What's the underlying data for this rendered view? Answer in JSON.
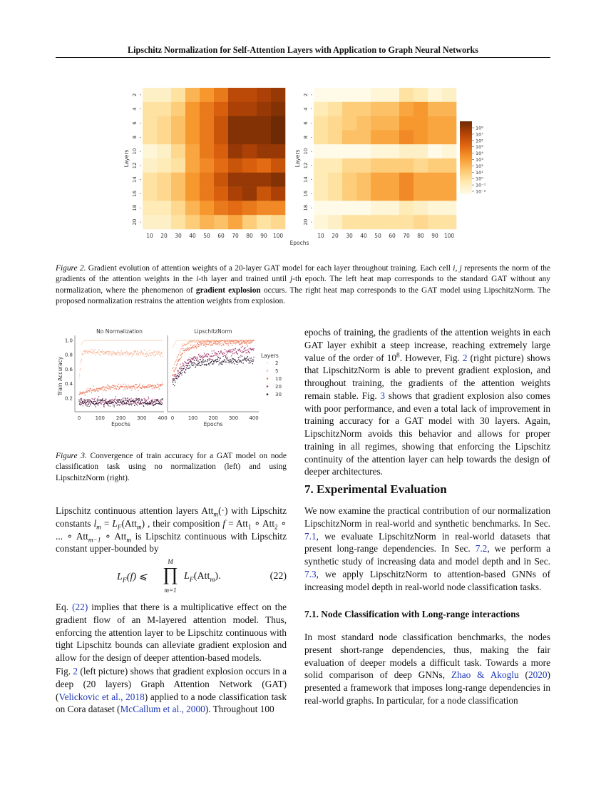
{
  "header": {
    "running_title": "Lipschitz Normalization for Self-Attention Layers with Application to Graph Neural Networks"
  },
  "chart_data": [
    {
      "type": "heatmap",
      "title": "Figure 2 left: standard GAT",
      "xlabel": "Epochs",
      "ylabel": "Layers",
      "x": [
        "10",
        "20",
        "30",
        "40",
        "50",
        "60",
        "70",
        "80",
        "90",
        "100"
      ],
      "y": [
        "2",
        "4",
        "6",
        "8",
        "10",
        "12",
        "14",
        "16",
        "18",
        "20"
      ],
      "value_scale": "log10 of gradient norm",
      "values": [
        [
          -1,
          -1,
          0,
          2,
          3,
          4,
          6,
          6,
          6.5,
          7
        ],
        [
          0,
          0,
          1,
          3,
          4,
          5,
          6.5,
          6.5,
          7,
          7.5
        ],
        [
          0,
          0.5,
          1.5,
          3,
          4,
          5.5,
          7.5,
          7.5,
          7.5,
          8
        ],
        [
          0,
          0.5,
          1.5,
          3,
          4,
          5.5,
          7.5,
          7.5,
          7.5,
          8
        ],
        [
          -1.5,
          -1,
          0.5,
          2.5,
          4,
          5,
          7,
          6.5,
          7,
          7
        ],
        [
          -1,
          -0.5,
          0,
          2.5,
          3.5,
          4.5,
          5.5,
          5,
          4.5,
          5.5
        ],
        [
          0,
          0.5,
          1.5,
          3,
          4,
          5.5,
          7,
          7,
          7,
          7.5
        ],
        [
          0,
          0.5,
          1.5,
          3,
          4,
          5,
          6.5,
          7,
          5.5,
          6.5
        ],
        [
          -0.5,
          -0.5,
          0.5,
          2,
          3,
          4,
          4.5,
          4,
          3.5,
          3.5
        ],
        [
          -1,
          -1,
          0,
          1,
          2,
          1.5,
          2.5,
          1,
          0,
          0.5
        ]
      ]
    },
    {
      "type": "heatmap",
      "title": "Figure 2 right: GAT with LipschitzNorm",
      "xlabel": "Epochs",
      "ylabel": "Layers",
      "x": [
        "10",
        "20",
        "30",
        "40",
        "50",
        "60",
        "70",
        "80",
        "90",
        "100"
      ],
      "y": [
        "2",
        "4",
        "6",
        "8",
        "10",
        "12",
        "14",
        "16",
        "18",
        "20"
      ],
      "value_scale": "log10 of gradient norm",
      "values": [
        [
          -2,
          -2,
          -2,
          -2,
          -1.5,
          -1.5,
          0,
          -0.5,
          -1.5,
          -1
        ],
        [
          -0.5,
          0,
          1,
          1,
          1.5,
          1.5,
          2.5,
          3,
          2,
          2
        ],
        [
          0,
          0.5,
          1,
          1.5,
          2,
          2,
          3,
          3,
          2.5,
          2.5
        ],
        [
          0,
          0.5,
          1.5,
          1.5,
          2.5,
          2.5,
          3.5,
          3,
          2.5,
          2.5
        ],
        [
          -2,
          -2,
          -2.5,
          -2.5,
          -1.5,
          -1.5,
          -1,
          -1,
          -2,
          -1.5
        ],
        [
          -0.5,
          -0.5,
          0.5,
          0.5,
          1,
          1,
          1,
          0.5,
          1,
          1
        ],
        [
          -0.5,
          0,
          1,
          1.5,
          2.5,
          2.5,
          3.5,
          2.5,
          2.5,
          2.5
        ],
        [
          -0.5,
          0,
          1,
          1.5,
          2.5,
          2.5,
          3.5,
          2.5,
          2.5,
          2.5
        ],
        [
          -2,
          -2,
          -2.5,
          -2.5,
          -1.5,
          -1.5,
          -0.5,
          -1,
          -1.5,
          -1.5
        ],
        [
          -1.5,
          -1,
          0,
          0,
          0,
          0,
          0,
          0.5,
          0,
          0
        ]
      ],
      "colorbar": {
        "range": [
          -2,
          8
        ],
        "ticks": [
          "10⁸",
          "10⁷",
          "10⁶",
          "10⁵",
          "10⁴",
          "10³",
          "10²",
          "10¹",
          "10⁰",
          "10⁻¹",
          "10⁻²"
        ],
        "colors": [
          "#fffbe8",
          "#fee9b0",
          "#fdc66c",
          "#f7982f",
          "#e06610",
          "#b24306",
          "#6e2a05"
        ]
      }
    },
    {
      "type": "scatter",
      "panels": [
        {
          "title": "No Normalization",
          "series": [
            {
              "name": "2",
              "color": "#fbe2d3",
              "epochs": [
                0,
                10,
                25,
                400
              ],
              "mean": [
                0.45,
                0.95,
                1.0,
                1.0
              ],
              "spread": 0.005
            },
            {
              "name": "5",
              "color": "#f6b697",
              "epochs": [
                0,
                15,
                30,
                100,
                400
              ],
              "mean": [
                0.5,
                0.8,
                0.86,
                0.83,
                0.81
              ],
              "spread": 0.03
            },
            {
              "name": "10",
              "color": "#ee7a5d",
              "epochs": [
                0,
                50,
                150,
                400
              ],
              "mean": [
                0.25,
                0.31,
                0.35,
                0.36
              ],
              "spread": 0.03
            },
            {
              "name": "20",
              "color": "#a23d70",
              "epochs": [
                0,
                400
              ],
              "mean": [
                0.15,
                0.15
              ],
              "spread": 0.045
            },
            {
              "name": "30",
              "color": "#2b1a33",
              "epochs": [
                0,
                400
              ],
              "mean": [
                0.14,
                0.14
              ],
              "spread": 0.04
            }
          ]
        },
        {
          "title": "LipschitzNorm",
          "series": [
            {
              "name": "2",
              "color": "#fbe2d3",
              "epochs": [
                0,
                20,
                400
              ],
              "mean": [
                0.9,
                1.0,
                1.0
              ],
              "spread": 0.004
            },
            {
              "name": "5",
              "color": "#f6b697",
              "epochs": [
                0,
                50,
                100,
                400
              ],
              "mean": [
                0.6,
                0.93,
                0.99,
                1.0
              ],
              "spread": 0.015
            },
            {
              "name": "10",
              "color": "#ee7a5d",
              "epochs": [
                0,
                50,
                150,
                400
              ],
              "mean": [
                0.5,
                0.85,
                0.96,
                0.98
              ],
              "spread": 0.03
            },
            {
              "name": "20",
              "color": "#a23d70",
              "epochs": [
                0,
                50,
                100,
                200,
                400
              ],
              "mean": [
                0.45,
                0.65,
                0.75,
                0.8,
                0.88
              ],
              "spread": 0.04
            },
            {
              "name": "30",
              "color": "#2b1a33",
              "epochs": [
                0,
                50,
                100,
                200,
                400
              ],
              "mean": [
                0.4,
                0.58,
                0.67,
                0.71,
                0.73
              ],
              "spread": 0.04
            }
          ]
        }
      ],
      "xlabel": "Epochs",
      "ylabel": "Train Accuracy",
      "xticks": [
        "0",
        "100",
        "200",
        "300",
        "400"
      ],
      "yticks": [
        "0.2",
        "0.4",
        "0.6",
        "0.8",
        "1.0"
      ],
      "xlim": [
        0,
        400
      ],
      "ylim": [
        0.05,
        1.05
      ],
      "legend": {
        "title": "Layers",
        "placement": "right"
      }
    }
  ],
  "fig2_caption": [
    {
      "t": "Figure 2.",
      "i": true
    },
    {
      "t": " Gradient evolution of attention weights of a 20-layer GAT model for each layer throughout training. Each cell "
    },
    {
      "t": "i, j",
      "i": true
    },
    {
      "t": " represents the norm of the gradients of the attention weights in the "
    },
    {
      "t": "i",
      "i": true
    },
    {
      "t": "-th layer and trained until "
    },
    {
      "t": "j",
      "i": true
    },
    {
      "t": "-th epoch. The left heat map corresponds to the standard GAT without any normalization, where the phenomenon of "
    },
    {
      "t": "gradient explosion",
      "b": true
    },
    {
      "t": " occurs. The right heat map corresponds to the GAT model using LipschitzNorm. The proposed normalization restrains the attention weights from explosion."
    }
  ],
  "fig3_caption": [
    {
      "t": "Figure 3.",
      "i": true
    },
    {
      "t": " Convergence of train accuracy for a GAT model on node classification task using no normalization (left) and using LipschitzNorm (right)."
    }
  ],
  "left_col": {
    "p1": [
      {
        "t": "Lipschitz continuous attention layers Att"
      },
      {
        "sub": "m",
        "si": true
      },
      {
        "t": "(·) with Lipschitz constants "
      },
      {
        "t": "l",
        "i": true
      },
      {
        "sub": "m",
        "si": true
      },
      {
        "t": " = "
      },
      {
        "t": "L",
        "i": true
      },
      {
        "sub": "F",
        "si": true
      },
      {
        "t": "(Att"
      },
      {
        "sub": "m",
        "si": true
      },
      {
        "t": ") , their composition "
      },
      {
        "t": "f",
        "i": true
      },
      {
        "t": " = Att"
      },
      {
        "sub": "1"
      },
      {
        "t": " ∘ Att"
      },
      {
        "sub": "2"
      },
      {
        "t": " ∘ ... ∘ Att"
      },
      {
        "sub": "m−1",
        "si": true
      },
      {
        "t": " ∘ Att"
      },
      {
        "sub": "m",
        "si": true
      },
      {
        "t": " is Lipschitz continuous with Lipschitz constant upper-bounded by"
      }
    ],
    "equation": {
      "lhs": "L",
      "lhs_sub": "F",
      "lhs_arg": "(f) ⩽",
      "prod": "∏",
      "prod_top": "M",
      "prod_bottom": "m=1",
      "rhs": "L",
      "rhs_sub": "F",
      "rhs_arg": "(Att",
      "rhs_arg_sub": "m",
      "rhs_end": ").",
      "number": "(22)"
    },
    "p2": [
      {
        "t": "Eq. "
      },
      {
        "t": "(22)",
        "link": true
      },
      {
        "t": " implies that there is a multiplicative effect on the gradient flow of an M-layered attention model. Thus, enforcing the attention layer to be Lipschitz continuous with tight Lipschitz bounds can alleviate gradient explosion and allow for the design of deeper attention-based models."
      }
    ],
    "p3": [
      {
        "t": "Fig. "
      },
      {
        "t": "2",
        "link": true
      },
      {
        "t": " (left picture) shows that gradient explosion occurs in a deep (20 layers) Graph Attention Network (GAT) ("
      },
      {
        "t": "Velickovic et al., 2018",
        "link": true
      },
      {
        "t": ") applied to a node classification task on Cora dataset ("
      },
      {
        "t": "McCallum et al., 2000",
        "link": true
      },
      {
        "t": "). Throughout 100"
      }
    ]
  },
  "right_col": {
    "p1": [
      {
        "t": "epochs of training, the gradients of the attention weights in each GAT layer exhibit a steep increase, reaching extremely large value of the order of 10"
      },
      {
        "sup": "8"
      },
      {
        "t": ". However, Fig. "
      },
      {
        "t": "2",
        "link": true
      },
      {
        "t": " (right picture) shows that LipschitzNorm is able to prevent gradient explosion, and throughout training, the gradients of the attention weights remain stable. Fig. "
      },
      {
        "t": "3",
        "link": true
      },
      {
        "t": " shows that gradient explosion also comes with poor performance, and even a total lack of improvement in training accuracy for a GAT model with 30 layers. Again, LipschitzNorm avoids this behavior and allows for proper training in all regimes, showing that enforcing the Lipschitz continuity of the attention layer can help towards the design of deeper architectures."
      }
    ],
    "section_heading": "7. Experimental Evaluation",
    "p2": [
      {
        "t": "We now examine the practical contribution of our normalization LipschitzNorm in real-world and synthetic benchmarks. In Sec. "
      },
      {
        "t": "7.1",
        "link": true
      },
      {
        "t": ", we evaluate LipschitzNorm in real-world datasets that present long-range dependencies. In Sec. "
      },
      {
        "t": "7.2",
        "link": true
      },
      {
        "t": ", we perform a synthetic study of increasing data and model depth and in Sec. "
      },
      {
        "t": "7.3",
        "link": true
      },
      {
        "t": ", we apply LipschitzNorm to attention-based GNNs of increasing model depth in real-world node classification tasks."
      }
    ],
    "subsection_heading": "7.1. Node Classification with Long-range interactions",
    "p3": [
      {
        "t": "In most standard node classification benchmarks, the nodes present short-range dependencies, thus, making the fair evaluation of deeper models a difficult task. Towards a more solid comparison of deep GNNs, "
      },
      {
        "t": "Zhao & Akoglu",
        "link": true
      },
      {
        "t": " ("
      },
      {
        "t": "2020",
        "link": true
      },
      {
        "t": ") presented a framework that imposes long-range dependencies in real-world graphs. In particular, for a node classification"
      }
    ]
  }
}
